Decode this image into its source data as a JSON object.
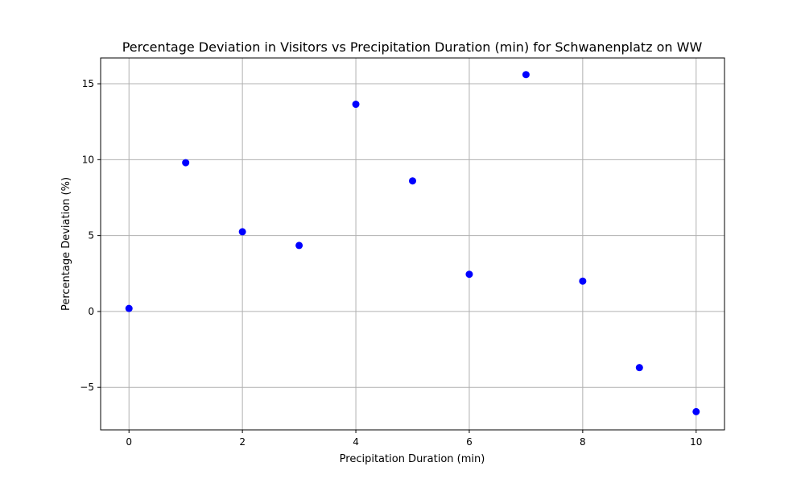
{
  "chart_data": {
    "type": "scatter",
    "title": "Percentage Deviation in Visitors vs Precipitation Duration (min) for Schwanenplatz on WW",
    "xlabel": "Precipitation Duration (min)",
    "ylabel": "Percentage Deviation (%)",
    "xlim": [
      -0.5,
      10.5
    ],
    "ylim": [
      -7.8,
      16.7
    ],
    "xticks": [
      0,
      2,
      4,
      6,
      8,
      10
    ],
    "yticks": [
      -5,
      0,
      5,
      10,
      15
    ],
    "xtick_labels": [
      "0",
      "2",
      "4",
      "6",
      "8",
      "10"
    ],
    "ytick_labels": [
      "−5",
      "0",
      "5",
      "10",
      "15"
    ],
    "grid": true,
    "marker_color": "#0000ff",
    "grid_color": "#b0b0b0",
    "x": [
      0,
      1,
      2,
      3,
      4,
      5,
      6,
      7,
      8,
      9,
      10
    ],
    "y": [
      0.2,
      9.8,
      5.25,
      4.35,
      13.65,
      8.6,
      2.45,
      15.6,
      2.0,
      -3.7,
      -6.6
    ]
  }
}
